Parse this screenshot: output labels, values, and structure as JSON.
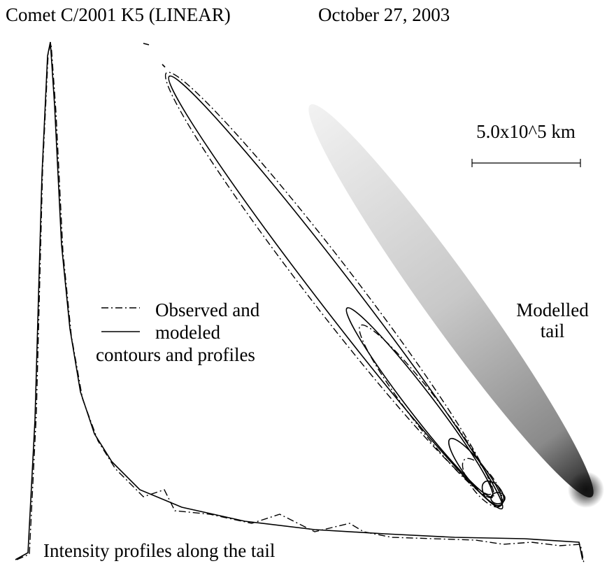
{
  "title": {
    "object": "Comet C/2001 K5 (LINEAR)",
    "date": "October 27, 2003"
  },
  "scale_bar": "5.0x10^5 km",
  "legend": [
    "Observed and",
    "modeled",
    "contours and profiles"
  ],
  "tail_label": [
    "Modelled",
    "tail"
  ],
  "profile_label": "Intensity profiles along the tail"
}
